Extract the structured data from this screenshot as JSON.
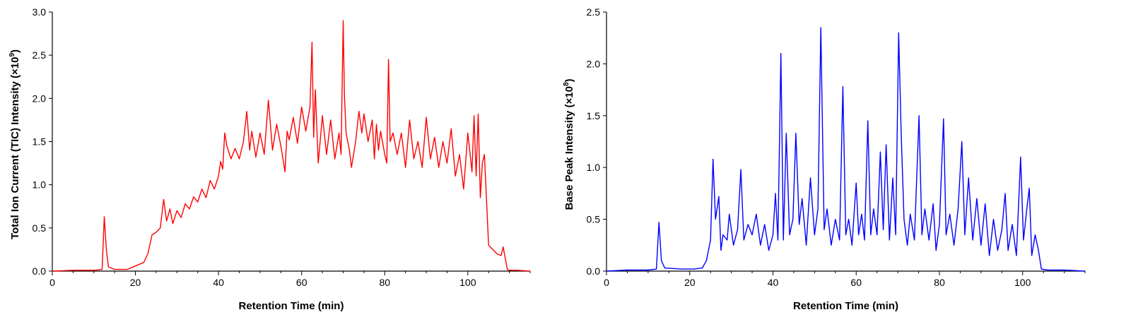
{
  "chart_data": [
    {
      "type": "line",
      "xlabel": "Retention Time (min)",
      "ylabel": "Total Ion Current (TIC) Intensity (×10",
      "ylabel_exponent": "9",
      "ylabel_close": ")",
      "xlim": [
        0,
        115
      ],
      "ylim": [
        0,
        3.0
      ],
      "x_ticks": [
        0,
        20,
        40,
        60,
        80,
        100
      ],
      "y_ticks": [
        "0.0",
        "0.5",
        "1.0",
        "1.5",
        "2.0",
        "2.5",
        "3.0"
      ],
      "color": "#ff0000",
      "grid": false,
      "series": [
        {
          "x": [
            0,
            5,
            10,
            12,
            12.5,
            13,
            13.5,
            15,
            18,
            20,
            22,
            23,
            24,
            25,
            26,
            26.8,
            27.5,
            28.3,
            29,
            30,
            31,
            32,
            33,
            34,
            35,
            36,
            37,
            38,
            39,
            40,
            40.5,
            41,
            41.5,
            42,
            43,
            44,
            45,
            46,
            46.8,
            47.5,
            48,
            49,
            50,
            51,
            52,
            53,
            54,
            55,
            56,
            56.5,
            57,
            58,
            59,
            60,
            61,
            62,
            62.5,
            62.9,
            63.3,
            64,
            65,
            66,
            67,
            68,
            69,
            69.5,
            70,
            70.3,
            70.7,
            71.5,
            72,
            73,
            73.8,
            74.5,
            75,
            76,
            77,
            77.5,
            78,
            78.5,
            79,
            80,
            80.5,
            80.9,
            81.3,
            82,
            83,
            84,
            85,
            86,
            87,
            88,
            89,
            90,
            91,
            92,
            93,
            94,
            95,
            96,
            97,
            98,
            99,
            100,
            101,
            101.5,
            102,
            102.5,
            103,
            103.5,
            104,
            105,
            106,
            107,
            108,
            108.5,
            109,
            109.5,
            110,
            112,
            115
          ],
          "y": [
            0.0,
            0.01,
            0.01,
            0.02,
            0.63,
            0.25,
            0.05,
            0.02,
            0.02,
            0.06,
            0.1,
            0.2,
            0.42,
            0.45,
            0.5,
            0.83,
            0.58,
            0.72,
            0.55,
            0.7,
            0.62,
            0.78,
            0.72,
            0.86,
            0.8,
            0.95,
            0.85,
            1.05,
            0.95,
            1.1,
            1.27,
            1.18,
            1.6,
            1.45,
            1.3,
            1.42,
            1.3,
            1.5,
            1.85,
            1.4,
            1.62,
            1.32,
            1.6,
            1.35,
            1.98,
            1.4,
            1.7,
            1.45,
            1.15,
            1.62,
            1.52,
            1.78,
            1.48,
            1.9,
            1.62,
            1.9,
            2.65,
            1.55,
            2.1,
            1.25,
            1.8,
            1.35,
            1.75,
            1.3,
            1.6,
            1.35,
            2.9,
            2.05,
            1.6,
            1.4,
            1.2,
            1.5,
            1.85,
            1.6,
            1.82,
            1.5,
            1.75,
            1.3,
            1.7,
            1.4,
            1.62,
            1.35,
            1.25,
            2.45,
            1.5,
            1.6,
            1.35,
            1.6,
            1.2,
            1.75,
            1.3,
            1.5,
            1.2,
            1.78,
            1.3,
            1.55,
            1.2,
            1.5,
            1.25,
            1.65,
            1.1,
            1.35,
            0.95,
            1.6,
            1.15,
            1.8,
            1.1,
            1.82,
            0.85,
            1.25,
            1.35,
            0.3,
            0.25,
            0.2,
            0.18,
            0.28,
            0.15,
            0.02,
            0.01,
            0.01,
            0.0
          ]
        }
      ]
    },
    {
      "type": "line",
      "xlabel": "Retention Time (min)",
      "ylabel": "Base Peak Intensity (×10",
      "ylabel_exponent": "8",
      "ylabel_close": ")",
      "xlim": [
        0,
        115
      ],
      "ylim": [
        0,
        2.5
      ],
      "x_ticks": [
        0,
        20,
        40,
        60,
        80,
        100
      ],
      "y_ticks": [
        "0.0",
        "0.5",
        "1.0",
        "1.5",
        "2.0",
        "2.5"
      ],
      "color": "#0000ff",
      "grid": false,
      "series": [
        {
          "x": [
            0,
            5,
            10,
            12,
            12.6,
            13.2,
            14,
            18,
            21,
            23,
            24,
            25,
            25.6,
            26.2,
            27,
            27.5,
            28,
            29,
            29.5,
            30.5,
            31.5,
            32.3,
            33,
            34,
            35,
            36,
            37,
            38,
            39,
            40,
            40.6,
            41.2,
            41.9,
            42.5,
            43.2,
            44,
            44.8,
            45.5,
            46.3,
            47,
            48,
            49,
            50,
            50.8,
            51.5,
            52.3,
            53,
            54,
            55,
            56,
            56.8,
            57.5,
            58.2,
            59,
            60,
            60.6,
            61.3,
            62,
            62.8,
            63.5,
            64.2,
            65,
            65.8,
            66.5,
            67.2,
            68,
            68.8,
            69.5,
            70.2,
            70.8,
            71.5,
            72.3,
            73,
            74,
            75.1,
            75.8,
            76.5,
            77.5,
            78.5,
            79.2,
            80,
            81,
            81.6,
            82.5,
            83.5,
            84.5,
            85.4,
            86.1,
            87,
            88,
            89,
            90,
            91,
            92,
            93,
            94,
            95,
            95.8,
            96.5,
            97.5,
            98.5,
            99.5,
            100.2,
            101,
            101.6,
            102.2,
            103,
            103.8,
            104.5,
            106,
            110,
            115
          ],
          "y": [
            0.0,
            0.01,
            0.01,
            0.02,
            0.47,
            0.1,
            0.03,
            0.02,
            0.02,
            0.03,
            0.1,
            0.3,
            1.08,
            0.5,
            0.72,
            0.2,
            0.35,
            0.3,
            0.55,
            0.25,
            0.4,
            0.98,
            0.3,
            0.45,
            0.35,
            0.55,
            0.25,
            0.45,
            0.2,
            0.35,
            0.75,
            0.3,
            2.1,
            0.3,
            1.33,
            0.35,
            0.5,
            1.33,
            0.45,
            0.7,
            0.25,
            0.9,
            0.35,
            0.6,
            2.35,
            0.4,
            0.6,
            0.25,
            0.5,
            0.3,
            1.78,
            0.35,
            0.5,
            0.25,
            0.85,
            0.35,
            0.55,
            0.3,
            1.45,
            0.35,
            0.6,
            0.35,
            1.15,
            0.4,
            1.22,
            0.3,
            0.9,
            0.35,
            2.3,
            1.35,
            0.5,
            0.25,
            0.55,
            0.3,
            1.5,
            0.35,
            0.6,
            0.3,
            0.65,
            0.2,
            0.45,
            1.47,
            0.35,
            0.55,
            0.25,
            0.6,
            1.25,
            0.35,
            0.9,
            0.3,
            0.7,
            0.25,
            0.65,
            0.15,
            0.5,
            0.2,
            0.4,
            0.75,
            0.2,
            0.45,
            0.15,
            1.1,
            0.3,
            0.6,
            0.8,
            0.15,
            0.35,
            0.2,
            0.02,
            0.01,
            0.01,
            0.0
          ]
        }
      ]
    }
  ]
}
